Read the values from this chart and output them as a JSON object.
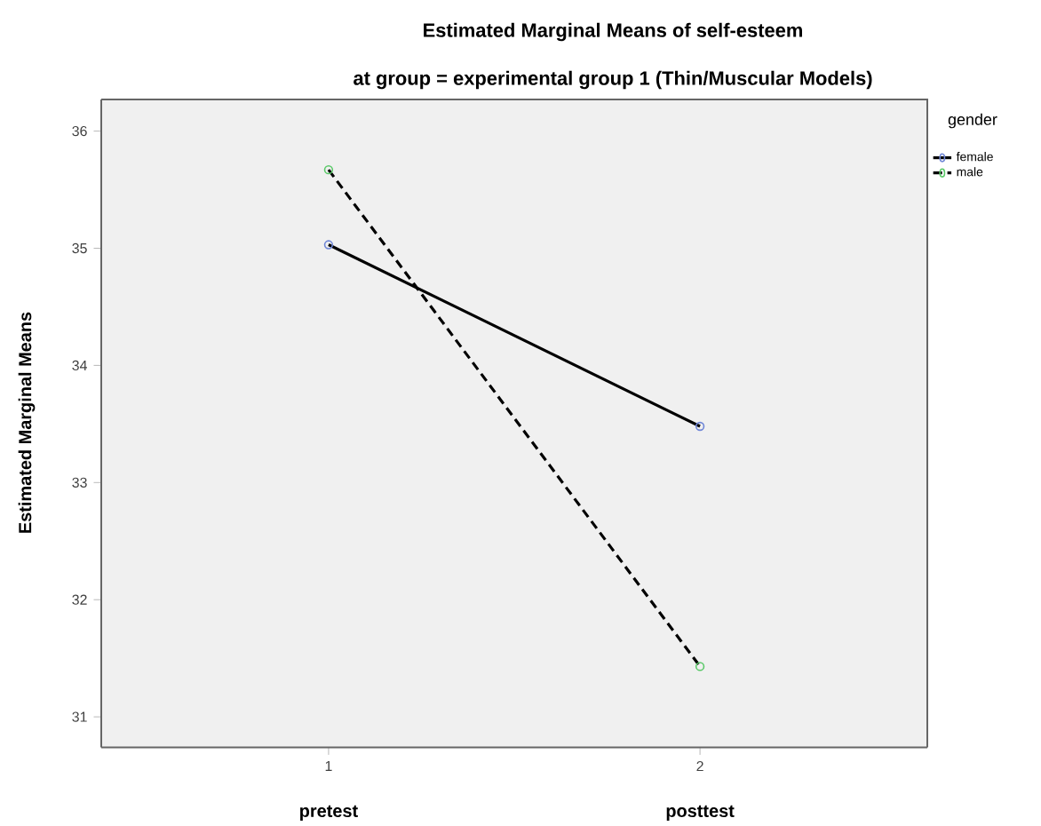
{
  "chart_data": {
    "type": "line",
    "title": "Estimated Marginal Means of self-esteem",
    "subtitle": "at group = experimental group 1 (Thin/Muscular Models)",
    "ylabel": "Estimated Marginal Means",
    "legend_title": "gender",
    "legend": "top right",
    "marker": "circle",
    "grid": false,
    "categories": [
      "1",
      "2"
    ],
    "annotations": [
      "pretest",
      "posttest"
    ],
    "ylim": [
      30.74,
      36.27
    ],
    "yticks": [
      31,
      32,
      33,
      34,
      35,
      36
    ],
    "series": [
      {
        "name": "female",
        "color": "#000000",
        "line_style": "solid",
        "values": [
          35.03,
          33.48
        ]
      },
      {
        "name": "male",
        "color": "#000000",
        "line_style": "dashed",
        "values": [
          35.67,
          31.43
        ]
      }
    ]
  }
}
